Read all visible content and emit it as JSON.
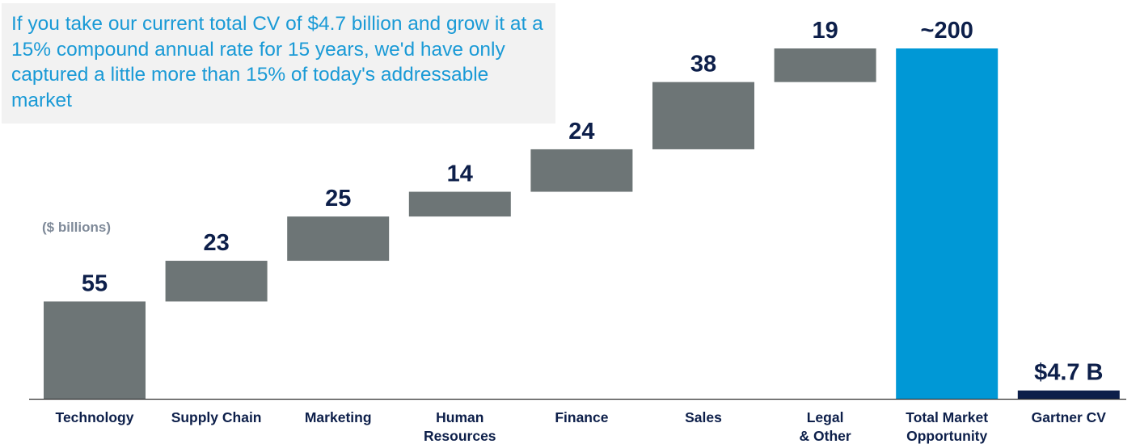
{
  "note": "If you take our current total CV of $4.7 billion and grow it at a 15% compound annual rate for 15 years, we'd have only captured a little more than 15% of today's addressable market",
  "chart_data": {
    "type": "bar",
    "subtype": "waterfall",
    "units_label": "($ billions)",
    "categories": [
      "Technology",
      "Supply Chain",
      "Marketing",
      "Human Resources",
      "Finance",
      "Sales",
      "Legal & Other",
      "Total Market Opportunity",
      "Gartner CV"
    ],
    "category_lines": [
      [
        "Technology"
      ],
      [
        "Supply Chain"
      ],
      [
        "Marketing"
      ],
      [
        "Human",
        "Resources"
      ],
      [
        "Finance"
      ],
      [
        "Sales"
      ],
      [
        "Legal",
        "& Other"
      ],
      [
        "Total Market",
        "Opportunity"
      ],
      [
        "Gartner CV"
      ]
    ],
    "values": [
      55,
      23,
      25,
      14,
      24,
      38,
      19,
      198,
      4.7
    ],
    "bases": [
      0,
      55,
      78,
      103,
      117,
      141,
      179,
      0,
      0
    ],
    "value_labels": [
      "55",
      "23",
      "25",
      "14",
      "24",
      "38",
      "19",
      "~200",
      "$4.7 B"
    ],
    "bar_roles": [
      "increment",
      "increment",
      "increment",
      "increment",
      "increment",
      "increment",
      "increment",
      "total",
      "reference"
    ],
    "ylim": [
      0,
      198
    ],
    "grid": false,
    "legend": "none",
    "colors": {
      "increment": "#6d7576",
      "total": "#0098d6",
      "reference": "#0d1f4a",
      "value_label": "#0d1f4a",
      "axis_label": "#0d1f4a",
      "axis_line": "#333333"
    }
  }
}
